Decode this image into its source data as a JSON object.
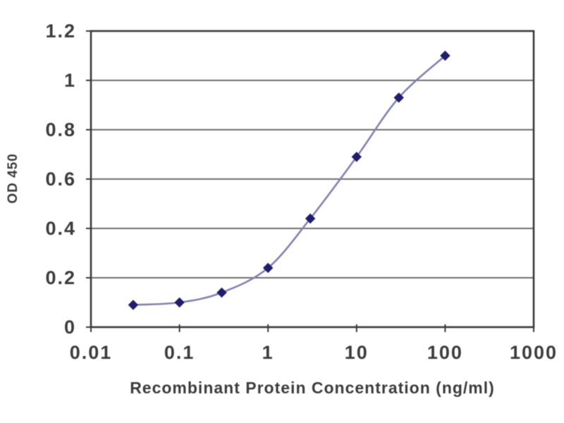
{
  "chart_data": {
    "type": "line",
    "title": "",
    "xlabel": "Recombinant Protein Concentration (ng/ml)",
    "ylabel": "OD 450",
    "x_scale": "log",
    "xlim": [
      0.01,
      1000
    ],
    "ylim": [
      0,
      1.2
    ],
    "x_ticks": [
      0.01,
      0.1,
      1,
      10,
      100,
      1000
    ],
    "x_tick_labels": [
      "0.01",
      "0.1",
      "1",
      "10",
      "100",
      "1000"
    ],
    "y_ticks": [
      0,
      0.2,
      0.4,
      0.6,
      0.8,
      1,
      1.2
    ],
    "y_tick_labels": [
      "0",
      "0.2",
      "0.4",
      "0.6",
      "0.8",
      "1",
      "1.2"
    ],
    "grid": "horizontal",
    "legend": "none",
    "series": [
      {
        "name": "OD 450",
        "x": [
          0.03,
          0.1,
          0.3,
          1,
          3,
          10,
          30,
          100
        ],
        "y": [
          0.09,
          0.1,
          0.14,
          0.24,
          0.44,
          0.69,
          0.93,
          1.1
        ],
        "marker": "diamond"
      }
    ],
    "colors": {
      "grid": "#6e6e6e",
      "frame": "#3a3a3a",
      "text": "#3c3c3c",
      "line": "#8282b2",
      "marker": "#201d6b"
    }
  }
}
